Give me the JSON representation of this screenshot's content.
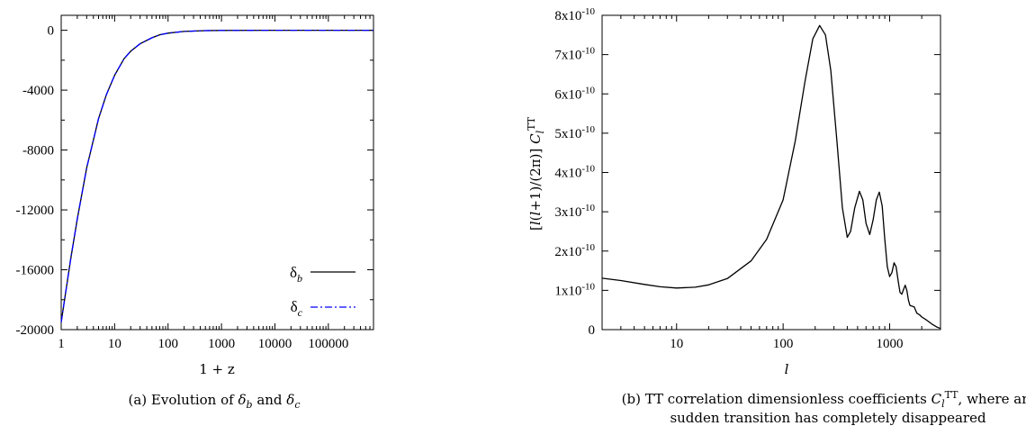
{
  "chart_data": [
    {
      "type": "line",
      "xlabel": "1 + z",
      "ylabel": "",
      "xscale": "log",
      "xlim": [
        1,
        700000
      ],
      "ylim": [
        -20000,
        1000
      ],
      "x_ticks": [
        "1",
        "10",
        "100",
        "1000",
        "10000",
        "100000"
      ],
      "y_ticks": [
        "0",
        "-4000",
        "-8000",
        "-12000",
        "-16000",
        "-20000"
      ],
      "x_tick_values": [
        1,
        10,
        100,
        1000,
        10000,
        100000
      ],
      "y_tick_values": [
        0,
        -4000,
        -8000,
        -12000,
        -16000,
        -20000
      ],
      "legend_position": "bottom-right",
      "caption_parts": [
        "(a) Evolution of ",
        "δ",
        "b",
        " and ",
        "δ",
        "c"
      ],
      "series": [
        {
          "name": "δb",
          "name_main": "δ",
          "name_sub": "b",
          "color": "#000000",
          "style": "solid",
          "x": [
            1,
            1.5,
            2,
            3,
            5,
            7,
            10,
            15,
            20,
            30,
            50,
            70,
            100,
            200,
            500,
            1000,
            10000,
            100000,
            700000
          ],
          "y": [
            -19500,
            -15300,
            -12600,
            -9200,
            -5900,
            -4300,
            -3000,
            -1900,
            -1400,
            -900,
            -500,
            -300,
            -190,
            -80,
            -25,
            -10,
            0,
            0,
            0
          ]
        },
        {
          "name": "δc",
          "name_main": "δ",
          "name_sub": "c",
          "color": "#0000ff",
          "style": "dashdot",
          "x": [
            1,
            1.5,
            2,
            3,
            5,
            7,
            10,
            15,
            20,
            30,
            50,
            70,
            100,
            200,
            500,
            1000,
            10000,
            100000,
            700000
          ],
          "y": [
            -19500,
            -15300,
            -12600,
            -9200,
            -5900,
            -4300,
            -3000,
            -1900,
            -1400,
            -900,
            -500,
            -300,
            -190,
            -80,
            -25,
            -10,
            0,
            0,
            0
          ]
        }
      ]
    },
    {
      "type": "line",
      "xlabel": "l",
      "ylabel_parts": [
        "[",
        "l",
        "(",
        "l",
        "+1)/(2π)] ",
        "C",
        "l",
        "TT"
      ],
      "xscale": "log",
      "xlim": [
        2,
        3000
      ],
      "ylim": [
        0,
        8e-10
      ],
      "x_ticks": [
        "10",
        "100",
        "1000"
      ],
      "x_tick_values": [
        10,
        100,
        1000
      ],
      "y_tick_values": [
        0,
        1e-10,
        2e-10,
        3e-10,
        4e-10,
        5e-10,
        6e-10,
        7e-10,
        8e-10
      ],
      "y_tick_mantissas": [
        "0",
        "1",
        "2",
        "3",
        "4",
        "5",
        "6",
        "7",
        "8"
      ],
      "y_tick_exp_base": "x10",
      "y_tick_exp": "-10",
      "legend_position": "none",
      "caption_lines": [
        [
          "(b) TT correlation dimensionless coefficients ",
          "C",
          "l",
          "TT",
          ", where any"
        ],
        [
          "sudden transition has completely disappeared"
        ]
      ],
      "series": [
        {
          "name": "",
          "color": "#000000",
          "style": "solid",
          "x": [
            2,
            3,
            5,
            7,
            10,
            15,
            20,
            30,
            50,
            70,
            100,
            130,
            160,
            190,
            220,
            250,
            280,
            320,
            360,
            400,
            430,
            470,
            520,
            560,
            600,
            650,
            700,
            750,
            800,
            850,
            900,
            950,
            1000,
            1050,
            1100,
            1150,
            1200,
            1250,
            1300,
            1350,
            1400,
            1450,
            1500,
            1550,
            1600,
            1700,
            1800,
            1900,
            2000,
            2200,
            2500,
            2800,
            3000
          ],
          "y": [
            1.31e-10,
            1.25e-10,
            1.15e-10,
            1.09e-10,
            1.06e-10,
            1.08e-10,
            1.14e-10,
            1.3e-10,
            1.75e-10,
            2.3e-10,
            3.3e-10,
            4.8e-10,
            6.3e-10,
            7.4e-10,
            7.74e-10,
            7.5e-10,
            6.6e-10,
            4.8e-10,
            3.1e-10,
            2.35e-10,
            2.5e-10,
            3.1e-10,
            3.52e-10,
            3.3e-10,
            2.7e-10,
            2.42e-10,
            2.8e-10,
            3.3e-10,
            3.5e-10,
            3.15e-10,
            2.3e-10,
            1.6e-10,
            1.35e-10,
            1.45e-10,
            1.7e-10,
            1.6e-10,
            1.25e-10,
            9.5e-11,
            9e-11,
            1.02e-10,
            1.13e-10,
            1e-10,
            7.5e-11,
            6.2e-11,
            6e-11,
            5.8e-11,
            4.2e-11,
            3.8e-11,
            3.2e-11,
            2.5e-11,
            1.4e-11,
            6e-12,
            3e-12
          ]
        }
      ]
    }
  ]
}
